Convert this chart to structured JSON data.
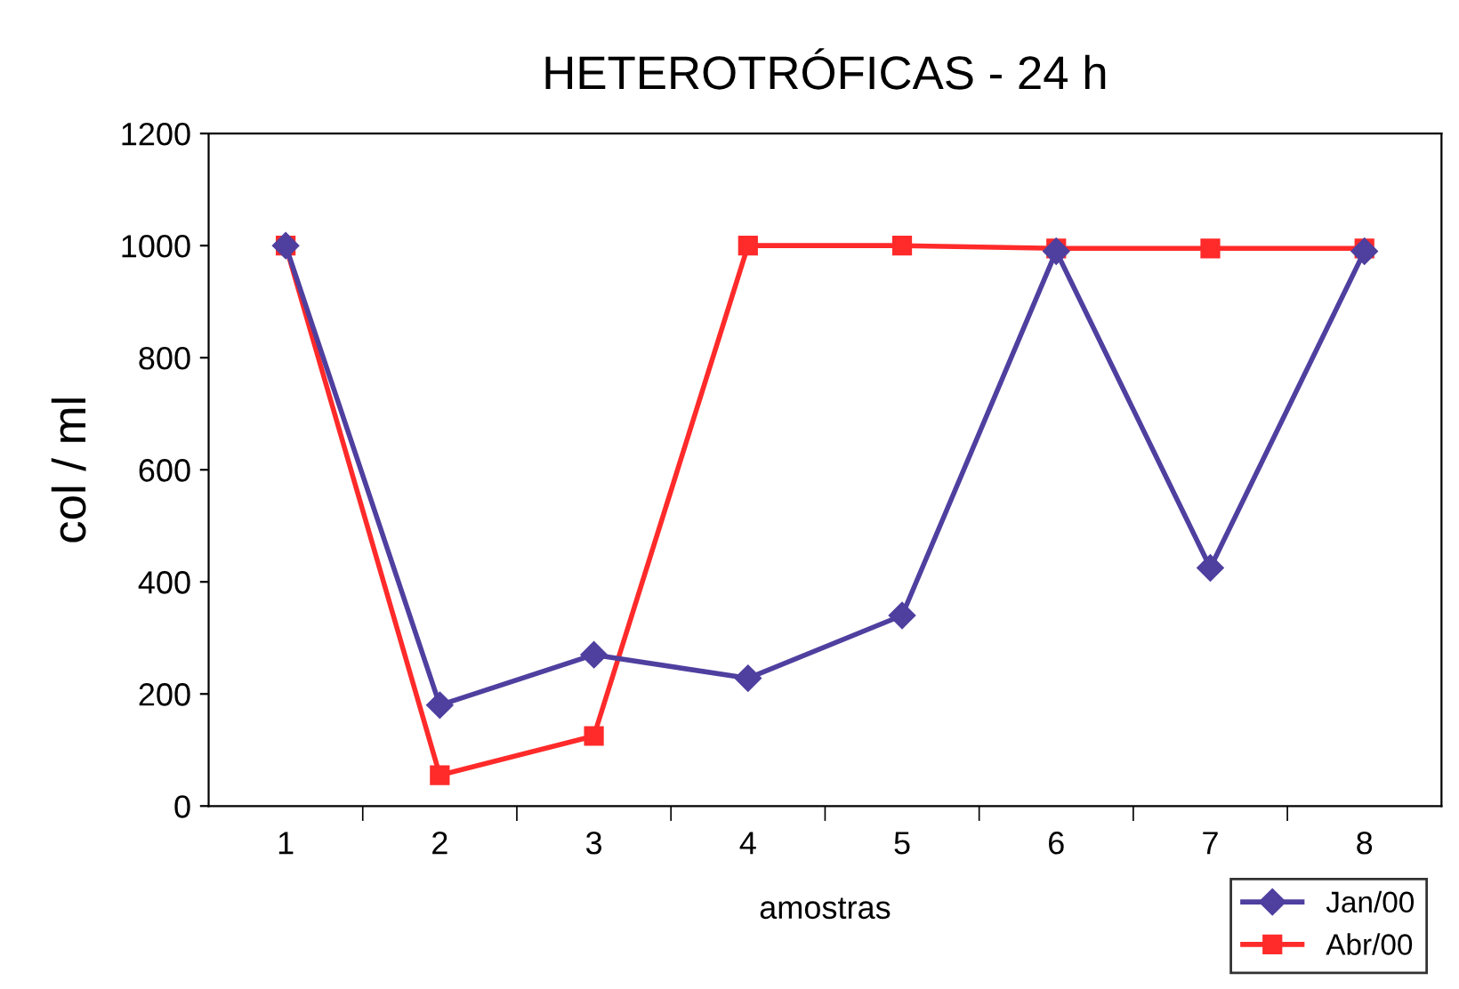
{
  "chart_data": {
    "type": "line",
    "title": "HETEROTRÓFICAS - 24 h",
    "xlabel": "amostras",
    "ylabel": "col / ml",
    "categories": [
      "1",
      "2",
      "3",
      "4",
      "5",
      "6",
      "7",
      "8"
    ],
    "series": [
      {
        "name": "Jan/00",
        "color": "#4f3f9f",
        "marker": "diamond",
        "values": [
          1000,
          180,
          270,
          228,
          340,
          990,
          425,
          990
        ]
      },
      {
        "name": "Abr/00",
        "color": "#ff2a2a",
        "marker": "square",
        "values": [
          1000,
          55,
          125,
          1000,
          1000,
          995,
          995,
          995
        ]
      }
    ],
    "ylim": [
      0,
      1200
    ],
    "yticks": [
      0,
      200,
      400,
      600,
      800,
      1000,
      1200
    ],
    "grid": false,
    "legend": "bottom right",
    "line_style": "solid"
  }
}
